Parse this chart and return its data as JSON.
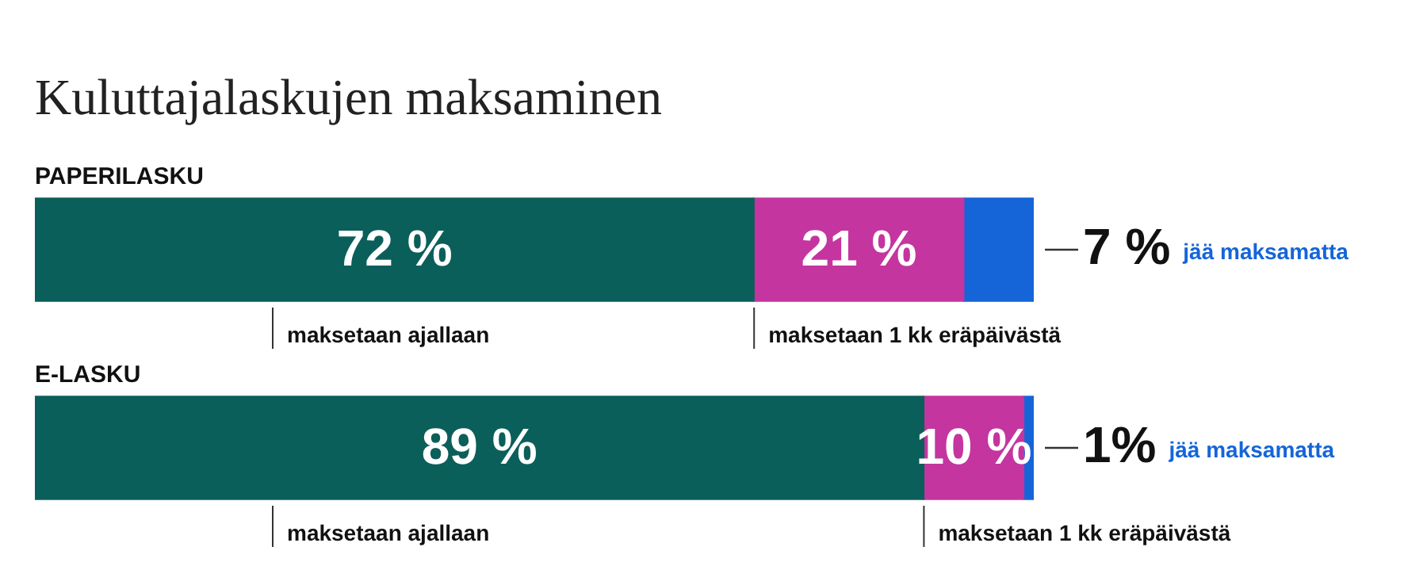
{
  "chart_data": {
    "type": "bar",
    "orientation": "horizontal",
    "stacked": true,
    "title": "Kuluttajalaskujen maksaminen",
    "categories": [
      "PAPERILASKU",
      "E-LASKU"
    ],
    "xlim": [
      0,
      100
    ],
    "series": [
      {
        "name": "maksetaan ajallaan",
        "color": "#0b5f5a",
        "values": [
          72,
          89
        ],
        "value_labels": [
          "72 %",
          "89 %"
        ]
      },
      {
        "name": "maksetaan 1 kk eräpäivästä",
        "color": "#c4359f",
        "values": [
          21,
          10
        ],
        "value_labels": [
          "21 %",
          "10 %"
        ]
      },
      {
        "name": "jää maksamatta",
        "color": "#1565d8",
        "values": [
          7,
          1
        ],
        "value_labels": [
          "7 %",
          "1%"
        ]
      }
    ]
  }
}
